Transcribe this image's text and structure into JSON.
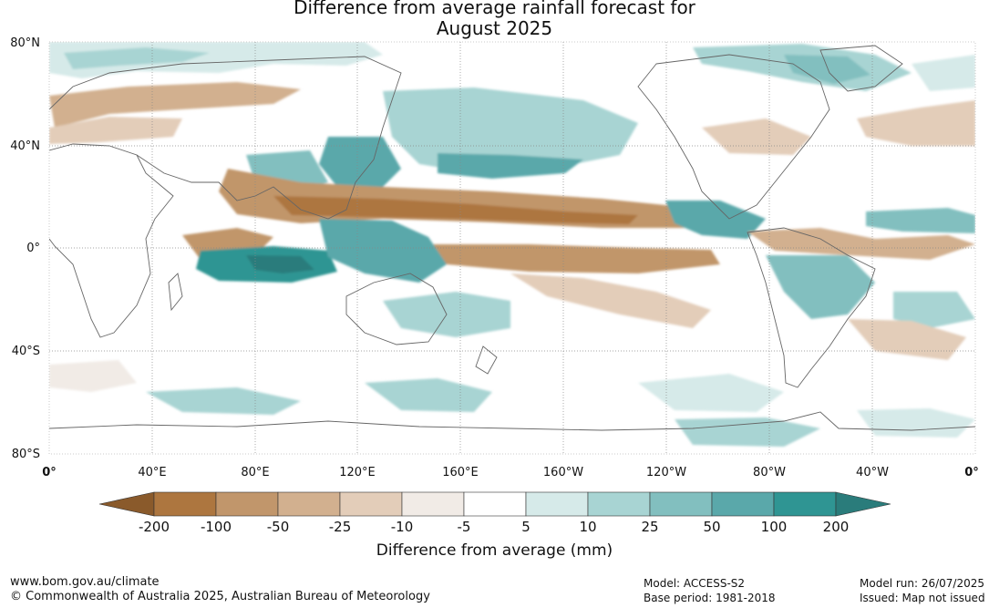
{
  "title_line1": "Difference from average rainfall forecast for",
  "title_line2": "August 2025",
  "lat_labels": [
    "80°N",
    "40°N",
    "0°",
    "40°S",
    "80°S"
  ],
  "lon_labels": [
    "0°",
    "40°E",
    "80°E",
    "120°E",
    "160°E",
    "160°W",
    "120°W",
    "80°W",
    "40°W",
    "0°"
  ],
  "colorbar": {
    "ticks": [
      "-200",
      "-100",
      "-50",
      "-25",
      "-10",
      "-5",
      "5",
      "10",
      "25",
      "50",
      "100",
      "200"
    ],
    "colors": {
      "below_min": "#8a5a2b",
      "bins": [
        "#ad763f",
        "#c1966b",
        "#d2b08f",
        "#e3cdb9",
        "#f1ebe6",
        "#ffffff",
        "#d6eae9",
        "#a8d4d3",
        "#82bfbf",
        "#5aa8aa",
        "#2f9593"
      ],
      "above_max": "#2a7c7b"
    },
    "label": "Difference from average (mm)"
  },
  "footer": {
    "url": "www.bom.gov.au/climate",
    "copyright": "© Commonwealth of Australia 2025, Australian Bureau of Meteorology",
    "model": "Model: ACCESS-S2",
    "base_period": "Base period: 1981-2018",
    "model_run": "Model run: 26/07/2025",
    "issued": "Issued: Map not issued"
  }
}
